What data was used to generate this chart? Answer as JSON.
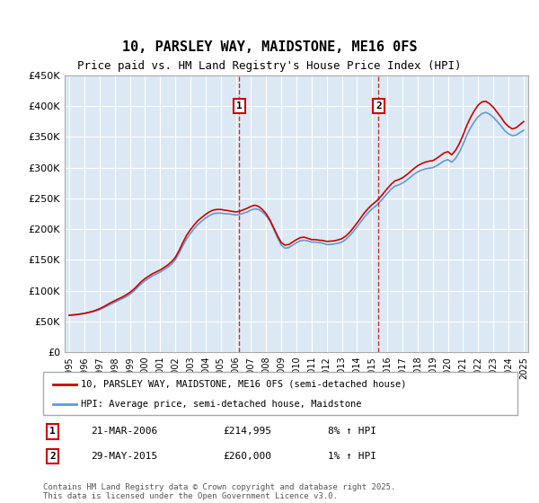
{
  "title": "10, PARSLEY WAY, MAIDSTONE, ME16 0FS",
  "subtitle": "Price paid vs. HM Land Registry's House Price Index (HPI)",
  "title_fontsize": 11,
  "subtitle_fontsize": 9,
  "background_color": "#ffffff",
  "plot_bg_color": "#dce9f5",
  "ylabel": "",
  "xlabel": "",
  "ylim": [
    0,
    450000
  ],
  "yticks": [
    0,
    50000,
    100000,
    150000,
    200000,
    250000,
    300000,
    350000,
    400000,
    450000
  ],
  "ytick_labels": [
    "£0",
    "£50K",
    "£100K",
    "£150K",
    "£200K",
    "£250K",
    "£300K",
    "£350K",
    "£400K",
    "£450K"
  ],
  "x_start_year": 1995,
  "x_end_year": 2025,
  "legend_line1": "10, PARSLEY WAY, MAIDSTONE, ME16 0FS (semi-detached house)",
  "legend_line2": "HPI: Average price, semi-detached house, Maidstone",
  "marker1_date": "21-MAR-2006",
  "marker1_price": "£214,995",
  "marker1_hpi": "8% ↑ HPI",
  "marker2_date": "29-MAY-2015",
  "marker2_price": "£260,000",
  "marker2_hpi": "1% ↑ HPI",
  "footer": "Contains HM Land Registry data © Crown copyright and database right 2025.\nThis data is licensed under the Open Government Licence v3.0.",
  "red_color": "#cc0000",
  "blue_color": "#6699cc",
  "grid_color": "#ffffff",
  "vline1_year": 2006.22,
  "vline2_year": 2015.42,
  "hpi_data": {
    "years": [
      1995.0,
      1995.25,
      1995.5,
      1995.75,
      1996.0,
      1996.25,
      1996.5,
      1996.75,
      1997.0,
      1997.25,
      1997.5,
      1997.75,
      1998.0,
      1998.25,
      1998.5,
      1998.75,
      1999.0,
      1999.25,
      1999.5,
      1999.75,
      2000.0,
      2000.25,
      2000.5,
      2000.75,
      2001.0,
      2001.25,
      2001.5,
      2001.75,
      2002.0,
      2002.25,
      2002.5,
      2002.75,
      2003.0,
      2003.25,
      2003.5,
      2003.75,
      2004.0,
      2004.25,
      2004.5,
      2004.75,
      2005.0,
      2005.25,
      2005.5,
      2005.75,
      2006.0,
      2006.25,
      2006.5,
      2006.75,
      2007.0,
      2007.25,
      2007.5,
      2007.75,
      2008.0,
      2008.25,
      2008.5,
      2008.75,
      2009.0,
      2009.25,
      2009.5,
      2009.75,
      2010.0,
      2010.25,
      2010.5,
      2010.75,
      2011.0,
      2011.25,
      2011.5,
      2011.75,
      2012.0,
      2012.25,
      2012.5,
      2012.75,
      2013.0,
      2013.25,
      2013.5,
      2013.75,
      2014.0,
      2014.25,
      2014.5,
      2014.75,
      2015.0,
      2015.25,
      2015.5,
      2015.75,
      2016.0,
      2016.25,
      2016.5,
      2016.75,
      2017.0,
      2017.25,
      2017.5,
      2017.75,
      2018.0,
      2018.25,
      2018.5,
      2018.75,
      2019.0,
      2019.25,
      2019.5,
      2019.75,
      2020.0,
      2020.25,
      2020.5,
      2020.75,
      2021.0,
      2021.25,
      2021.5,
      2021.75,
      2022.0,
      2022.25,
      2022.5,
      2022.75,
      2023.0,
      2023.25,
      2023.5,
      2023.75,
      2024.0,
      2024.25,
      2024.5,
      2024.75,
      2025.0
    ],
    "values": [
      60000,
      60500,
      61000,
      62000,
      63000,
      64000,
      65500,
      67000,
      69000,
      72000,
      75000,
      78000,
      81000,
      84000,
      87000,
      90000,
      94000,
      99000,
      105000,
      111000,
      116000,
      120000,
      124000,
      127000,
      130000,
      134000,
      138000,
      143000,
      150000,
      161000,
      173000,
      184000,
      193000,
      201000,
      208000,
      213000,
      218000,
      222000,
      225000,
      226000,
      226000,
      225000,
      225000,
      224000,
      223000,
      224000,
      226000,
      228000,
      231000,
      233000,
      232000,
      228000,
      222000,
      213000,
      200000,
      186000,
      174000,
      169000,
      170000,
      174000,
      178000,
      181000,
      182000,
      181000,
      179000,
      179000,
      178000,
      177000,
      175000,
      175000,
      176000,
      177000,
      179000,
      183000,
      189000,
      196000,
      204000,
      212000,
      220000,
      227000,
      233000,
      238000,
      244000,
      251000,
      258000,
      265000,
      270000,
      272000,
      275000,
      279000,
      284000,
      289000,
      293000,
      296000,
      298000,
      299000,
      300000,
      303000,
      307000,
      311000,
      313000,
      309000,
      315000,
      325000,
      338000,
      353000,
      365000,
      375000,
      383000,
      388000,
      390000,
      387000,
      382000,
      375000,
      368000,
      360000,
      355000,
      352000,
      353000,
      357000,
      361000
    ],
    "red_values": [
      60000,
      60500,
      61000,
      62000,
      63000,
      64500,
      66000,
      68000,
      70500,
      73500,
      77000,
      80500,
      83500,
      86500,
      89500,
      93000,
      97000,
      102000,
      108000,
      114500,
      119500,
      123500,
      127500,
      130500,
      133500,
      137500,
      141500,
      147000,
      154000,
      165000,
      178000,
      190000,
      199000,
      207000,
      214000,
      219000,
      224000,
      228000,
      231000,
      232000,
      232000,
      231000,
      230000,
      229000,
      228000,
      229000,
      231500,
      234000,
      237000,
      239000,
      237000,
      232000,
      225000,
      215000,
      202000,
      189000,
      178000,
      174000,
      175000,
      179000,
      183000,
      186000,
      187000,
      185000,
      183000,
      183000,
      182000,
      181500,
      180000,
      180500,
      181000,
      182500,
      184500,
      188500,
      194500,
      202000,
      210000,
      218500,
      227000,
      234000,
      240000,
      245000,
      251000,
      258500,
      266000,
      273000,
      278500,
      280500,
      283500,
      288000,
      293000,
      298500,
      303000,
      306500,
      309000,
      310500,
      311500,
      315000,
      319500,
      324000,
      326000,
      321000,
      328000,
      339000,
      353000,
      369000,
      382000,
      393000,
      402000,
      407000,
      408000,
      404000,
      398000,
      390000,
      382000,
      373000,
      367000,
      363000,
      365000,
      370000,
      375000
    ]
  }
}
